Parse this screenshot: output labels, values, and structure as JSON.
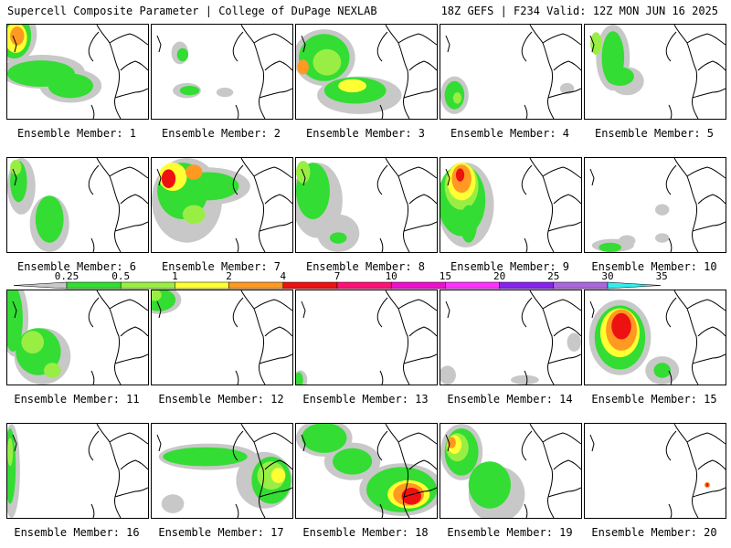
{
  "header": {
    "left": "Supercell Composite Parameter | College of DuPage NEXLAB",
    "right": "18Z GEFS | F234 Valid: 12Z MON JUN 16 2025"
  },
  "legend": {
    "ticks": [
      "0.25",
      "0.5",
      "1",
      "2",
      "4",
      "7",
      "10",
      "15",
      "20",
      "25",
      "30",
      "35"
    ],
    "colors": [
      "#c8c8c8",
      "#33dd33",
      "#99ee44",
      "#ffff33",
      "#ff9922",
      "#ee1111",
      "#ff1177",
      "#ee11cc",
      "#ff33ff",
      "#8822ee",
      "#aa66dd",
      "#33eeee"
    ]
  },
  "members": [
    {
      "label": "Ensemble Member: 1",
      "blobs": [
        [
          0.05,
          0.1,
          0.16,
          0.3,
          "#c8c8c8"
        ],
        [
          0.25,
          0.5,
          0.3,
          0.18,
          "#c8c8c8"
        ],
        [
          0.45,
          0.65,
          0.22,
          0.18,
          "#c8c8c8"
        ],
        [
          0.05,
          0.12,
          0.12,
          0.24,
          "#33dd33"
        ],
        [
          0.24,
          0.52,
          0.24,
          0.14,
          "#33dd33"
        ],
        [
          0.45,
          0.65,
          0.16,
          0.13,
          "#33dd33"
        ],
        [
          0.06,
          0.14,
          0.08,
          0.16,
          "#ffff33"
        ],
        [
          0.07,
          0.12,
          0.05,
          0.1,
          "#ff9922"
        ]
      ]
    },
    {
      "label": "Ensemble Member: 2",
      "blobs": [
        [
          0.25,
          0.7,
          0.1,
          0.08,
          "#c8c8c8"
        ],
        [
          0.27,
          0.7,
          0.07,
          0.05,
          "#33dd33"
        ],
        [
          0.52,
          0.72,
          0.06,
          0.05,
          "#c8c8c8"
        ],
        [
          0.2,
          0.3,
          0.06,
          0.12,
          "#c8c8c8"
        ],
        [
          0.22,
          0.32,
          0.04,
          0.07,
          "#33dd33"
        ]
      ]
    },
    {
      "label": "Ensemble Member: 3",
      "blobs": [
        [
          0.2,
          0.35,
          0.22,
          0.3,
          "#c8c8c8"
        ],
        [
          0.45,
          0.75,
          0.3,
          0.2,
          "#c8c8c8"
        ],
        [
          0.2,
          0.35,
          0.18,
          0.25,
          "#33dd33"
        ],
        [
          0.42,
          0.7,
          0.22,
          0.14,
          "#33dd33"
        ],
        [
          0.22,
          0.4,
          0.1,
          0.14,
          "#99ee44"
        ],
        [
          0.4,
          0.65,
          0.1,
          0.07,
          "#ffff33"
        ],
        [
          0.05,
          0.45,
          0.04,
          0.08,
          "#ff9922"
        ]
      ]
    },
    {
      "label": "Ensemble Member: 4",
      "blobs": [
        [
          0.1,
          0.75,
          0.1,
          0.2,
          "#c8c8c8"
        ],
        [
          0.1,
          0.75,
          0.07,
          0.15,
          "#33dd33"
        ],
        [
          0.12,
          0.78,
          0.03,
          0.06,
          "#99ee44"
        ],
        [
          0.9,
          0.68,
          0.05,
          0.06,
          "#c8c8c8"
        ]
      ]
    },
    {
      "label": "Ensemble Member: 5",
      "blobs": [
        [
          0.2,
          0.35,
          0.12,
          0.35,
          "#c8c8c8"
        ],
        [
          0.3,
          0.6,
          0.12,
          0.15,
          "#c8c8c8"
        ],
        [
          0.2,
          0.35,
          0.08,
          0.28,
          "#33dd33"
        ],
        [
          0.25,
          0.55,
          0.1,
          0.1,
          "#33dd33"
        ],
        [
          0.08,
          0.2,
          0.04,
          0.12,
          "#99ee44"
        ]
      ]
    },
    {
      "label": "Ensemble Member: 6",
      "blobs": [
        [
          0.1,
          0.3,
          0.1,
          0.3,
          "#c8c8c8"
        ],
        [
          0.3,
          0.7,
          0.14,
          0.3,
          "#c8c8c8"
        ],
        [
          0.08,
          0.25,
          0.06,
          0.22,
          "#33dd33"
        ],
        [
          0.3,
          0.65,
          0.1,
          0.25,
          "#33dd33"
        ],
        [
          0.06,
          0.1,
          0.04,
          0.08,
          "#99ee44"
        ]
      ]
    },
    {
      "label": "Ensemble Member: 7",
      "blobs": [
        [
          0.25,
          0.45,
          0.25,
          0.45,
          "#c8c8c8"
        ],
        [
          0.4,
          0.3,
          0.3,
          0.2,
          "#c8c8c8"
        ],
        [
          0.22,
          0.35,
          0.18,
          0.3,
          "#33dd33"
        ],
        [
          0.4,
          0.3,
          0.22,
          0.15,
          "#33dd33"
        ],
        [
          0.15,
          0.2,
          0.1,
          0.15,
          "#ffff33"
        ],
        [
          0.12,
          0.22,
          0.05,
          0.1,
          "#ee1111"
        ],
        [
          0.3,
          0.15,
          0.06,
          0.08,
          "#ff9922"
        ],
        [
          0.3,
          0.6,
          0.08,
          0.1,
          "#99ee44"
        ]
      ]
    },
    {
      "label": "Ensemble Member: 8",
      "blobs": [
        [
          0.15,
          0.45,
          0.18,
          0.4,
          "#c8c8c8"
        ],
        [
          0.3,
          0.8,
          0.15,
          0.2,
          "#c8c8c8"
        ],
        [
          0.12,
          0.35,
          0.12,
          0.3,
          "#33dd33"
        ],
        [
          0.05,
          0.15,
          0.05,
          0.12,
          "#99ee44"
        ],
        [
          0.3,
          0.85,
          0.06,
          0.06,
          "#33dd33"
        ]
      ]
    },
    {
      "label": "Ensemble Member: 9",
      "blobs": [
        [
          0.18,
          0.5,
          0.2,
          0.45,
          "#c8c8c8"
        ],
        [
          0.15,
          0.45,
          0.17,
          0.38,
          "#33dd33"
        ],
        [
          0.15,
          0.3,
          0.12,
          0.25,
          "#99ee44"
        ],
        [
          0.15,
          0.25,
          0.1,
          0.2,
          "#ffff33"
        ],
        [
          0.15,
          0.22,
          0.07,
          0.15,
          "#ff9922"
        ],
        [
          0.14,
          0.18,
          0.03,
          0.07,
          "#ee1111"
        ],
        [
          0.2,
          0.7,
          0.06,
          0.2,
          "#33dd33"
        ]
      ]
    },
    {
      "label": "Ensemble Member: 10",
      "blobs": [
        [
          0.2,
          0.93,
          0.15,
          0.07,
          "#c8c8c8"
        ],
        [
          0.18,
          0.95,
          0.08,
          0.05,
          "#33dd33"
        ],
        [
          0.3,
          0.88,
          0.06,
          0.06,
          "#c8c8c8"
        ],
        [
          0.55,
          0.85,
          0.05,
          0.05,
          "#c8c8c8"
        ],
        [
          0.55,
          0.55,
          0.05,
          0.06,
          "#c8c8c8"
        ]
      ]
    },
    {
      "label": "Ensemble Member: 11",
      "blobs": [
        [
          0.05,
          0.3,
          0.1,
          0.4,
          "#c8c8c8"
        ],
        [
          0.25,
          0.7,
          0.2,
          0.3,
          "#c8c8c8"
        ],
        [
          0.04,
          0.3,
          0.07,
          0.35,
          "#33dd33"
        ],
        [
          0.22,
          0.65,
          0.16,
          0.25,
          "#33dd33"
        ],
        [
          0.18,
          0.55,
          0.08,
          0.12,
          "#99ee44"
        ],
        [
          0.32,
          0.85,
          0.06,
          0.08,
          "#99ee44"
        ]
      ]
    },
    {
      "label": "Ensemble Member: 12",
      "blobs": [
        [
          0.05,
          0.1,
          0.16,
          0.15,
          "#c8c8c8"
        ],
        [
          0.05,
          0.1,
          0.12,
          0.12,
          "#33dd33"
        ],
        [
          0.02,
          0.05,
          0.05,
          0.06,
          "#99ee44"
        ]
      ]
    },
    {
      "label": "Ensemble Member: 13",
      "blobs": [
        [
          0.03,
          0.95,
          0.05,
          0.1,
          "#c8c8c8"
        ],
        [
          0.02,
          0.95,
          0.03,
          0.08,
          "#33dd33"
        ]
      ]
    },
    {
      "label": "Ensemble Member: 14",
      "blobs": [
        [
          0.05,
          0.9,
          0.06,
          0.1,
          "#c8c8c8"
        ],
        [
          0.6,
          0.95,
          0.1,
          0.05,
          "#c8c8c8"
        ],
        [
          0.95,
          0.55,
          0.05,
          0.1,
          "#c8c8c8"
        ]
      ]
    },
    {
      "label": "Ensemble Member: 15",
      "blobs": [
        [
          0.25,
          0.5,
          0.22,
          0.4,
          "#c8c8c8"
        ],
        [
          0.55,
          0.85,
          0.12,
          0.15,
          "#c8c8c8"
        ],
        [
          0.25,
          0.5,
          0.18,
          0.34,
          "#33dd33"
        ],
        [
          0.25,
          0.45,
          0.14,
          0.26,
          "#ffff33"
        ],
        [
          0.26,
          0.42,
          0.11,
          0.22,
          "#ff9922"
        ],
        [
          0.26,
          0.38,
          0.07,
          0.14,
          "#ee1111"
        ],
        [
          0.55,
          0.85,
          0.06,
          0.08,
          "#33dd33"
        ]
      ]
    },
    {
      "label": "Ensemble Member: 16",
      "blobs": [
        [
          0.03,
          0.5,
          0.06,
          0.5,
          "#c8c8c8"
        ],
        [
          0.02,
          0.45,
          0.04,
          0.4,
          "#33dd33"
        ],
        [
          0.02,
          0.3,
          0.02,
          0.15,
          "#99ee44"
        ]
      ]
    },
    {
      "label": "Ensemble Member: 17",
      "blobs": [
        [
          0.4,
          0.35,
          0.35,
          0.14,
          "#c8c8c8"
        ],
        [
          0.8,
          0.6,
          0.2,
          0.3,
          "#c8c8c8"
        ],
        [
          0.38,
          0.35,
          0.3,
          0.1,
          "#33dd33"
        ],
        [
          0.85,
          0.6,
          0.14,
          0.25,
          "#33dd33"
        ],
        [
          0.85,
          0.55,
          0.1,
          0.15,
          "#99ee44"
        ],
        [
          0.9,
          0.55,
          0.05,
          0.08,
          "#ffff33"
        ],
        [
          0.15,
          0.85,
          0.08,
          0.1,
          "#c8c8c8"
        ]
      ]
    },
    {
      "label": "Ensemble Member: 18",
      "blobs": [
        [
          0.2,
          0.15,
          0.2,
          0.2,
          "#c8c8c8"
        ],
        [
          0.4,
          0.4,
          0.2,
          0.2,
          "#c8c8c8"
        ],
        [
          0.75,
          0.7,
          0.3,
          0.28,
          "#c8c8c8"
        ],
        [
          0.2,
          0.15,
          0.16,
          0.16,
          "#33dd33"
        ],
        [
          0.4,
          0.4,
          0.14,
          0.14,
          "#33dd33"
        ],
        [
          0.75,
          0.7,
          0.25,
          0.24,
          "#33dd33"
        ],
        [
          0.8,
          0.75,
          0.15,
          0.15,
          "#ffff33"
        ],
        [
          0.8,
          0.75,
          0.11,
          0.12,
          "#ff9922"
        ],
        [
          0.82,
          0.77,
          0.07,
          0.09,
          "#ee1111"
        ]
      ]
    },
    {
      "label": "Ensemble Member: 19",
      "blobs": [
        [
          0.15,
          0.3,
          0.15,
          0.3,
          "#c8c8c8"
        ],
        [
          0.4,
          0.75,
          0.2,
          0.3,
          "#c8c8c8"
        ],
        [
          0.15,
          0.3,
          0.12,
          0.25,
          "#33dd33"
        ],
        [
          0.35,
          0.65,
          0.15,
          0.25,
          "#33dd33"
        ],
        [
          0.12,
          0.25,
          0.08,
          0.15,
          "#99ee44"
        ],
        [
          0.1,
          0.22,
          0.05,
          0.1,
          "#ffff33"
        ],
        [
          0.08,
          0.2,
          0.03,
          0.06,
          "#ff9922"
        ]
      ]
    },
    {
      "label": "Ensemble Member: 20",
      "blobs": [
        [
          0.87,
          0.65,
          0.02,
          0.03,
          "#ff9922"
        ],
        [
          0.87,
          0.65,
          0.01,
          0.02,
          "#ee1111"
        ]
      ],
      "border": "#000000"
    }
  ]
}
